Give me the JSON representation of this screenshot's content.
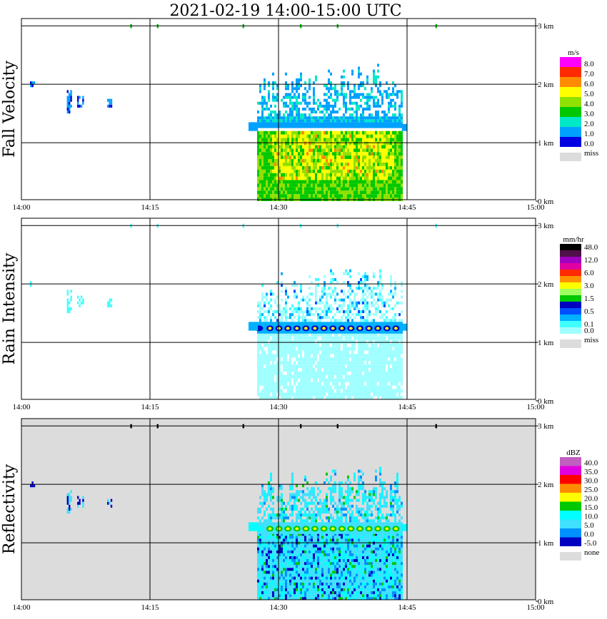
{
  "title": "2021-02-19   14:00-15:00 UTC",
  "x_ticks": [
    "14:00",
    "14:15",
    "14:30",
    "14:45",
    "15:00"
  ],
  "y_ticks": [
    "0 km",
    "1 km",
    "2 km",
    "3 km"
  ],
  "chart_data": [
    {
      "type": "heatmap",
      "panel": "Fall Velocity",
      "ylabel": "Fall Velocity",
      "xlim": [
        "14:00",
        "15:00"
      ],
      "ylim_km": [
        0,
        3.1
      ],
      "grid": true,
      "legend": {
        "unit": "m/s",
        "entries": [
          {
            "label": "8.0",
            "color": "#ff00ff"
          },
          {
            "label": "7.0",
            "color": "#ff2a00"
          },
          {
            "label": "6.0",
            "color": "#ff8c00"
          },
          {
            "label": "5.0",
            "color": "#ffff00"
          },
          {
            "label": "4.0",
            "color": "#90e000"
          },
          {
            "label": "3.0",
            "color": "#00c800"
          },
          {
            "label": "2.0",
            "color": "#00e8c8"
          },
          {
            "label": "1.0",
            "color": "#00a0ff"
          },
          {
            "label": "0.0",
            "color": "#0000e0"
          }
        ],
        "miss_label": "miss",
        "miss_color": "#dcdcdc"
      },
      "features": {
        "main_echo_time": [
          "14:27",
          "14:45"
        ],
        "upper_layer_km": [
          1.25,
          2.3
        ],
        "lower_layer_km": [
          0,
          1.2
        ],
        "isolated_echo_time": [
          "14:03",
          "14:11"
        ],
        "isolated_echo_km": [
          1.5,
          2.0
        ]
      }
    },
    {
      "type": "heatmap",
      "panel": "Rain Intensity",
      "ylabel": "Rain Intensity",
      "xlim": [
        "14:00",
        "15:00"
      ],
      "ylim_km": [
        0,
        3.1
      ],
      "grid": true,
      "legend": {
        "unit": "mm/hr",
        "entries": [
          {
            "label": "48.0",
            "color": "#000000"
          },
          {
            "label": "",
            "color": "#501048"
          },
          {
            "label": "12.0",
            "color": "#a000c0"
          },
          {
            "label": "",
            "color": "#e000a0"
          },
          {
            "label": "6.0",
            "color": "#ff2a00"
          },
          {
            "label": "",
            "color": "#ff9000"
          },
          {
            "label": "3.0",
            "color": "#ffff00"
          },
          {
            "label": "",
            "color": "#a0ff60"
          },
          {
            "label": "1.5",
            "color": "#00c800"
          },
          {
            "label": "",
            "color": "#0000c0"
          },
          {
            "label": "0.5",
            "color": "#0050ff"
          },
          {
            "label": "",
            "color": "#00b0ff"
          },
          {
            "label": "0.1",
            "color": "#40ffff"
          },
          {
            "label": "0.0",
            "color": "#a0ffff"
          }
        ],
        "miss_label": "miss",
        "miss_color": "#dcdcdc"
      },
      "features": {
        "main_echo_time": [
          "14:27",
          "14:45"
        ],
        "bright_band_km": 1.25
      }
    },
    {
      "type": "heatmap",
      "panel": "Reflectivity",
      "ylabel": "Reflectivity",
      "xlim": [
        "14:00",
        "15:00"
      ],
      "ylim_km": [
        0,
        3.1
      ],
      "grid": true,
      "legend": {
        "unit": "dBZ",
        "entries": [
          {
            "label": "40.0",
            "color": "#c060c0"
          },
          {
            "label": "35.0",
            "color": "#e000e0"
          },
          {
            "label": "30.0",
            "color": "#ff0000"
          },
          {
            "label": "25.0",
            "color": "#ff8c00"
          },
          {
            "label": "20.0",
            "color": "#ffff00"
          },
          {
            "label": "15.0",
            "color": "#00c800"
          },
          {
            "label": "10.0",
            "color": "#00ffff"
          },
          {
            "label": "5.0",
            "color": "#40e0ff"
          },
          {
            "label": "0.0",
            "color": "#0090ff"
          },
          {
            "label": "-5.0",
            "color": "#0000c0"
          }
        ],
        "miss_label": "none",
        "miss_color": "#dcdcdc"
      },
      "features": {
        "main_echo_time": [
          "14:27",
          "14:45"
        ],
        "bright_band_km": 1.25,
        "background": "none"
      }
    }
  ]
}
